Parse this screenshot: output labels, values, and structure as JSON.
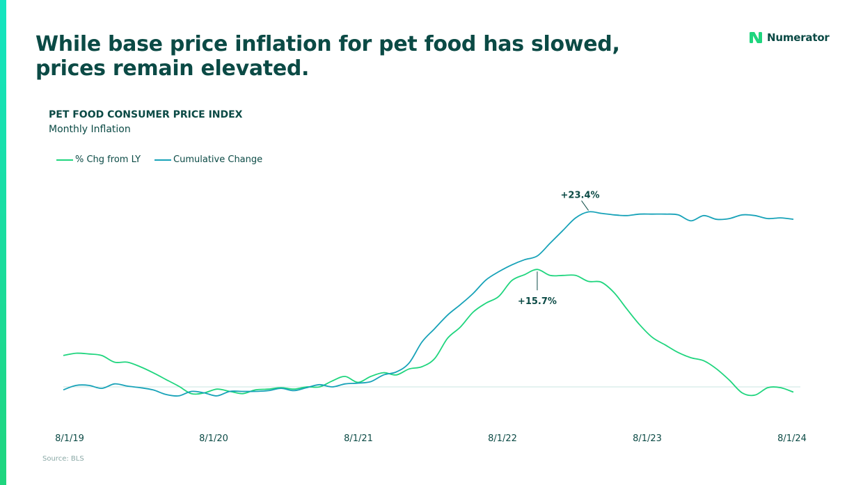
{
  "headline": "While base price inflation for pet food has slowed, prices remain elevated.",
  "brand": {
    "name": "Numerator",
    "icon": "numerator-n-logo-icon"
  },
  "colors": {
    "accent_green": "#1fd57e",
    "teal": "#17a2b8",
    "dark_text": "#0b4a45",
    "zero_line": "#c9e4e2"
  },
  "source": "Source: BLS",
  "chart_data": {
    "type": "line",
    "title": "PET FOOD CONSUMER PRICE INDEX",
    "subtitle": "Monthly Inflation",
    "xlabel": "",
    "ylabel": "",
    "x_ticks": [
      "8/1/19",
      "8/1/20",
      "8/1/21",
      "8/1/22",
      "8/1/23",
      "8/1/24"
    ],
    "ylim": [
      -2,
      26
    ],
    "grid": false,
    "legend_position": "top-left",
    "series": [
      {
        "name": "% Chg from LY",
        "color": "#1fd57e",
        "values": [
          4.2,
          4.5,
          4.4,
          4.2,
          3.3,
          3.3,
          2.7,
          1.9,
          1.0,
          0.1,
          -0.9,
          -0.8,
          -0.3,
          -0.6,
          -0.9,
          -0.4,
          -0.3,
          -0.1,
          -0.3,
          0.0,
          0.0,
          0.8,
          1.4,
          0.6,
          1.4,
          1.9,
          1.6,
          2.4,
          2.7,
          3.8,
          6.5,
          8.0,
          10.0,
          11.2,
          12.1,
          14.2,
          15.0,
          15.7,
          14.9,
          14.9,
          14.9,
          14.1,
          14.0,
          12.6,
          10.4,
          8.3,
          6.6,
          5.6,
          4.6,
          3.9,
          3.5,
          2.4,
          0.9,
          -0.8,
          -1.1,
          -0.1,
          -0.1,
          -0.7
        ],
        "annotation": {
          "label": "+15.7%",
          "index": 37
        }
      },
      {
        "name": "Cumulative Change",
        "color": "#17a2b8",
        "values": [
          -0.4,
          0.2,
          0.2,
          -0.2,
          0.4,
          0.1,
          -0.1,
          -0.4,
          -1.0,
          -1.2,
          -0.6,
          -0.8,
          -1.2,
          -0.6,
          -0.6,
          -0.6,
          -0.5,
          -0.2,
          -0.5,
          -0.1,
          0.3,
          0.0,
          0.4,
          0.5,
          0.7,
          1.6,
          2.0,
          3.2,
          6.0,
          7.8,
          9.6,
          11.0,
          12.5,
          14.3,
          15.4,
          16.3,
          17.0,
          17.5,
          19.2,
          20.9,
          22.6,
          23.4,
          23.2,
          23.0,
          22.9,
          23.1,
          23.1,
          23.1,
          23.0,
          22.2,
          22.9,
          22.4,
          22.5,
          23.0,
          22.9,
          22.5,
          22.6,
          22.4
        ],
        "annotation": {
          "label": "+23.4%",
          "index": 41
        }
      }
    ]
  }
}
